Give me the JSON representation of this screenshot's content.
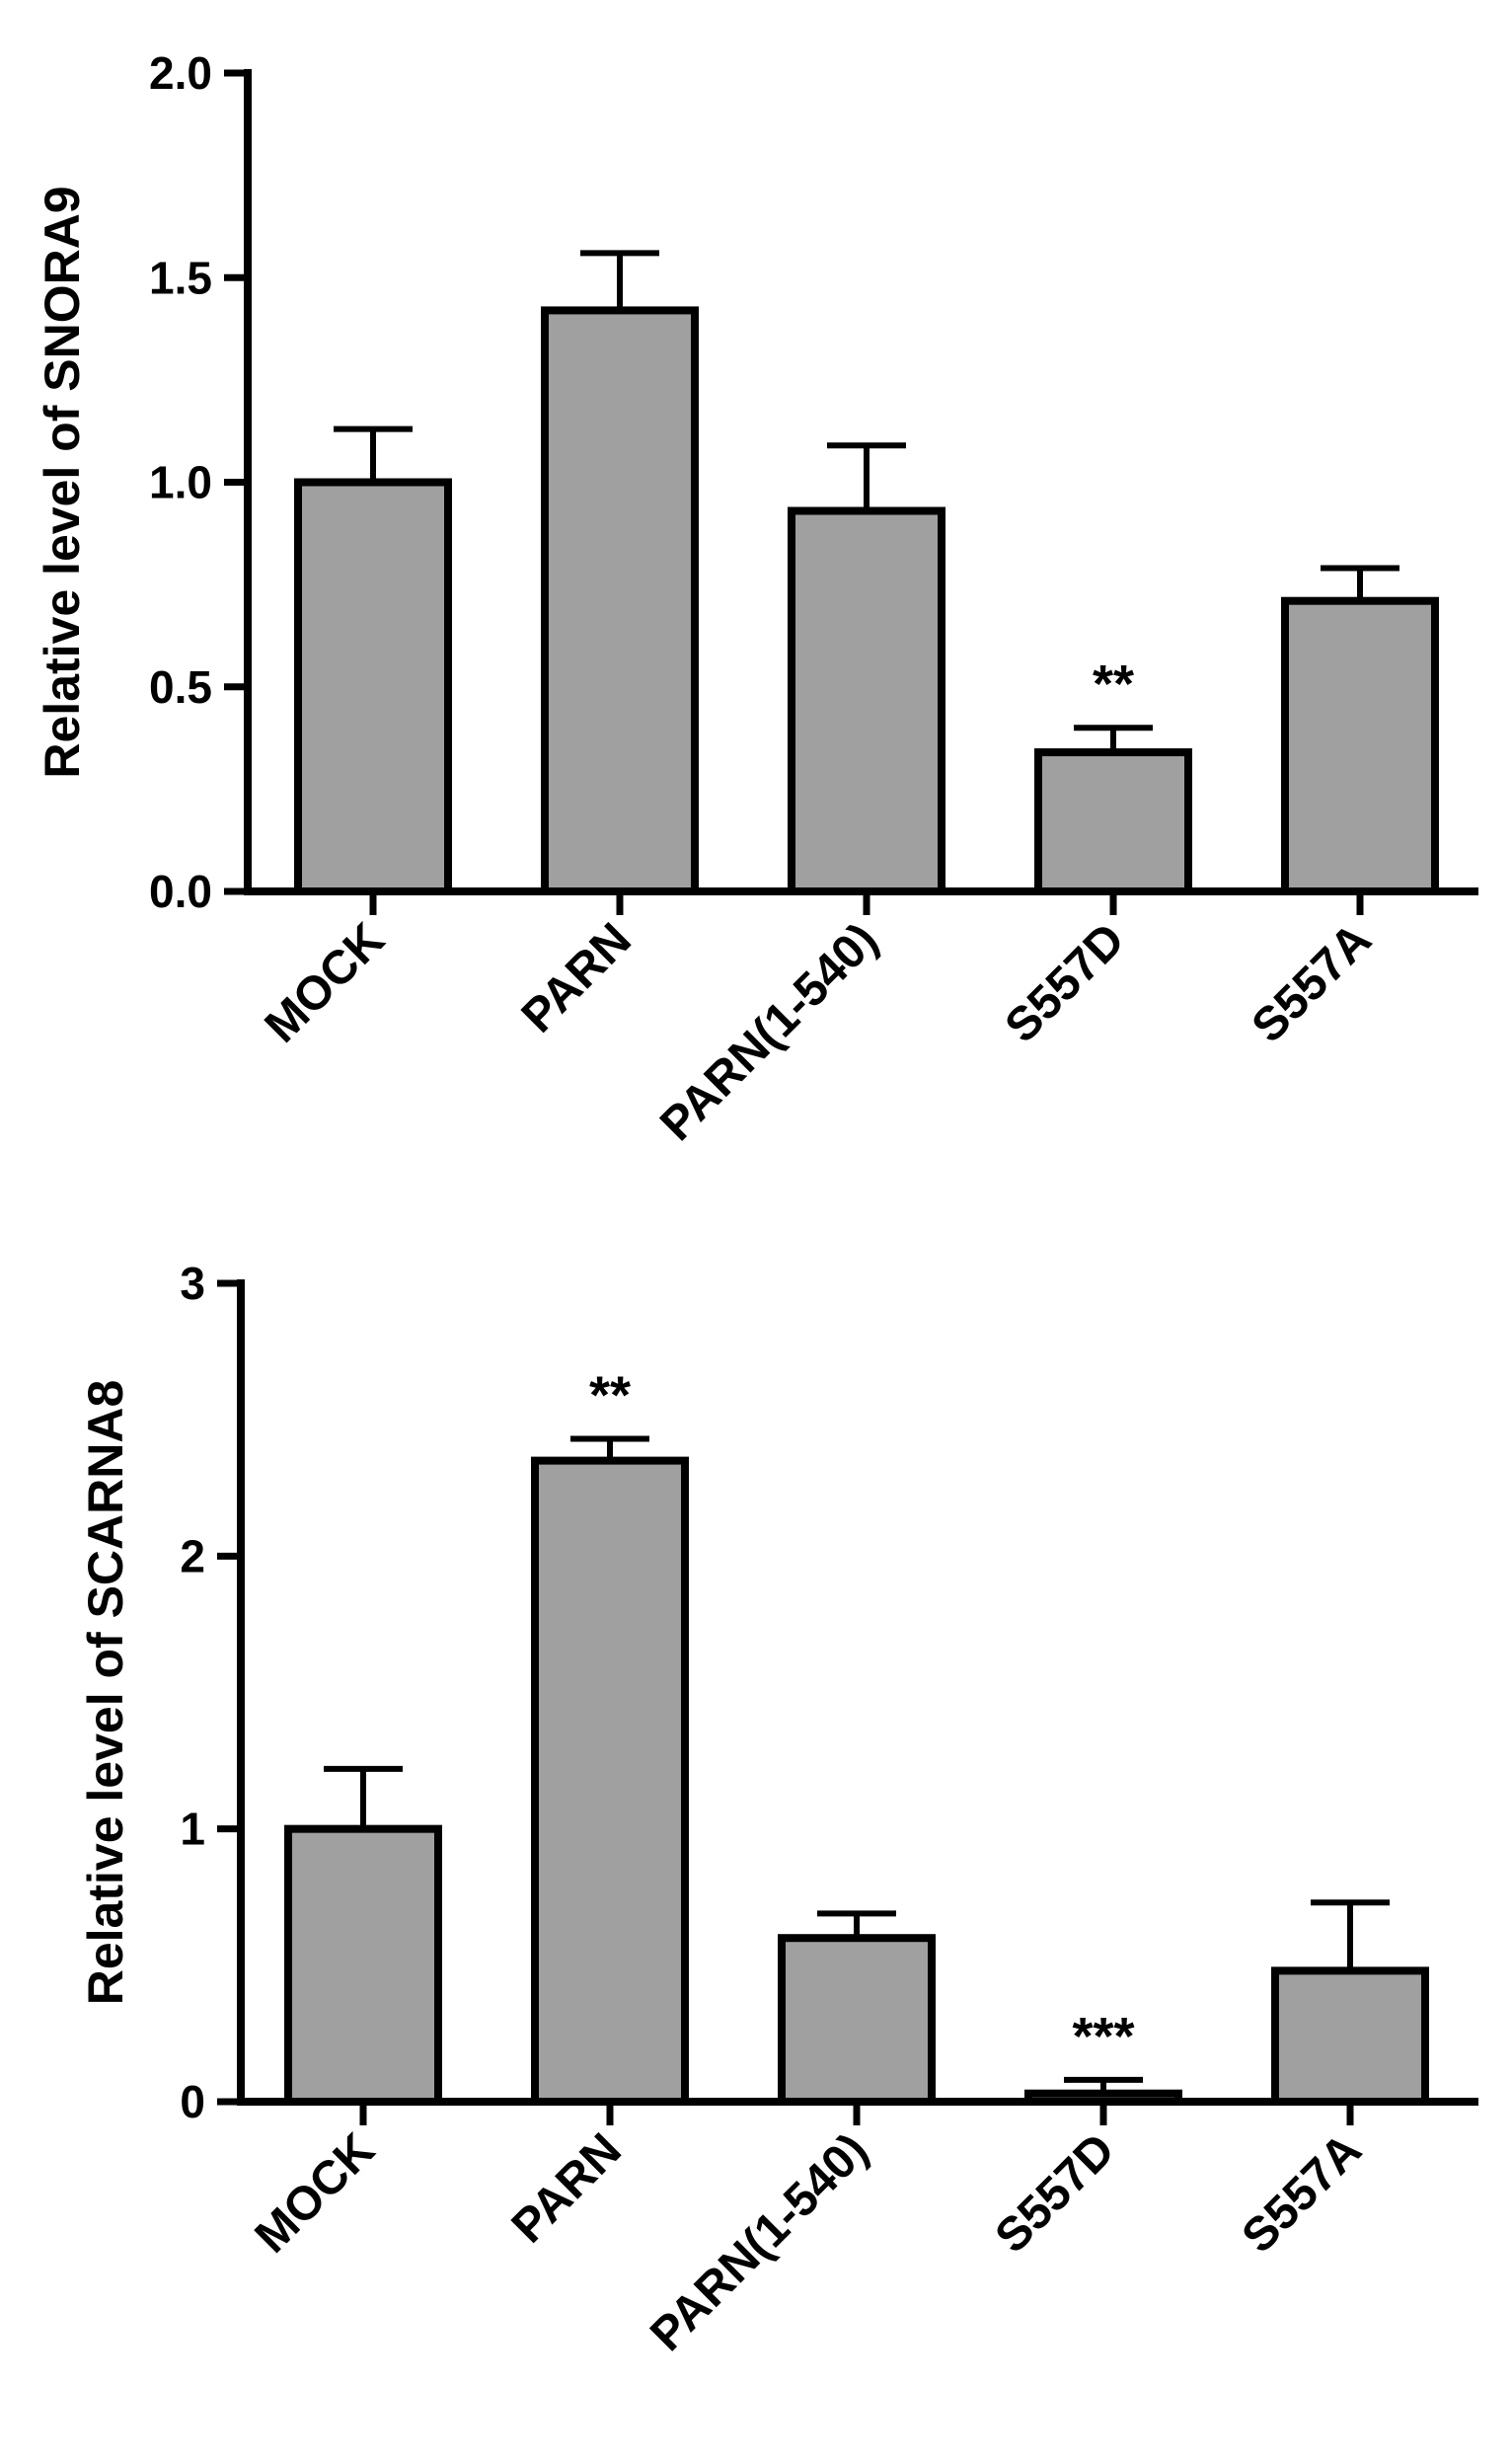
{
  "chart_data": [
    {
      "type": "bar",
      "title": "",
      "xlabel": "",
      "ylabel": "Relative level of SNORA9",
      "categories": [
        "MOCK",
        "PARN",
        "PARN(1-540)",
        "S557D",
        "S557A"
      ],
      "values": [
        1.0,
        1.42,
        0.93,
        0.34,
        0.71
      ],
      "errors": [
        0.13,
        0.14,
        0.16,
        0.06,
        0.08
      ],
      "significance": [
        "",
        "",
        "",
        "**",
        ""
      ],
      "ylim": [
        0,
        2.0
      ],
      "yticks": [
        0.0,
        0.5,
        1.0,
        1.5,
        2.0
      ],
      "ytick_labels": [
        "0.0",
        "0.5",
        "1.0",
        "1.5",
        "2.0"
      ],
      "bar_color": "#a0a0a0",
      "grid": false,
      "legend": "none"
    },
    {
      "type": "bar",
      "title": "",
      "xlabel": "",
      "ylabel": "Relative level of SCARNA8",
      "categories": [
        "MOCK",
        "PARN",
        "PARN(1-540)",
        "S557D",
        "S557A"
      ],
      "values": [
        1.0,
        2.35,
        0.6,
        0.03,
        0.48
      ],
      "errors": [
        0.22,
        0.08,
        0.09,
        0.05,
        0.25
      ],
      "significance": [
        "",
        "**",
        "",
        "***",
        ""
      ],
      "ylim": [
        0,
        3
      ],
      "yticks": [
        0,
        1,
        2,
        3
      ],
      "ytick_labels": [
        "0",
        "1",
        "2",
        "3"
      ],
      "bar_color": "#a0a0a0",
      "grid": false,
      "legend": "none"
    }
  ]
}
